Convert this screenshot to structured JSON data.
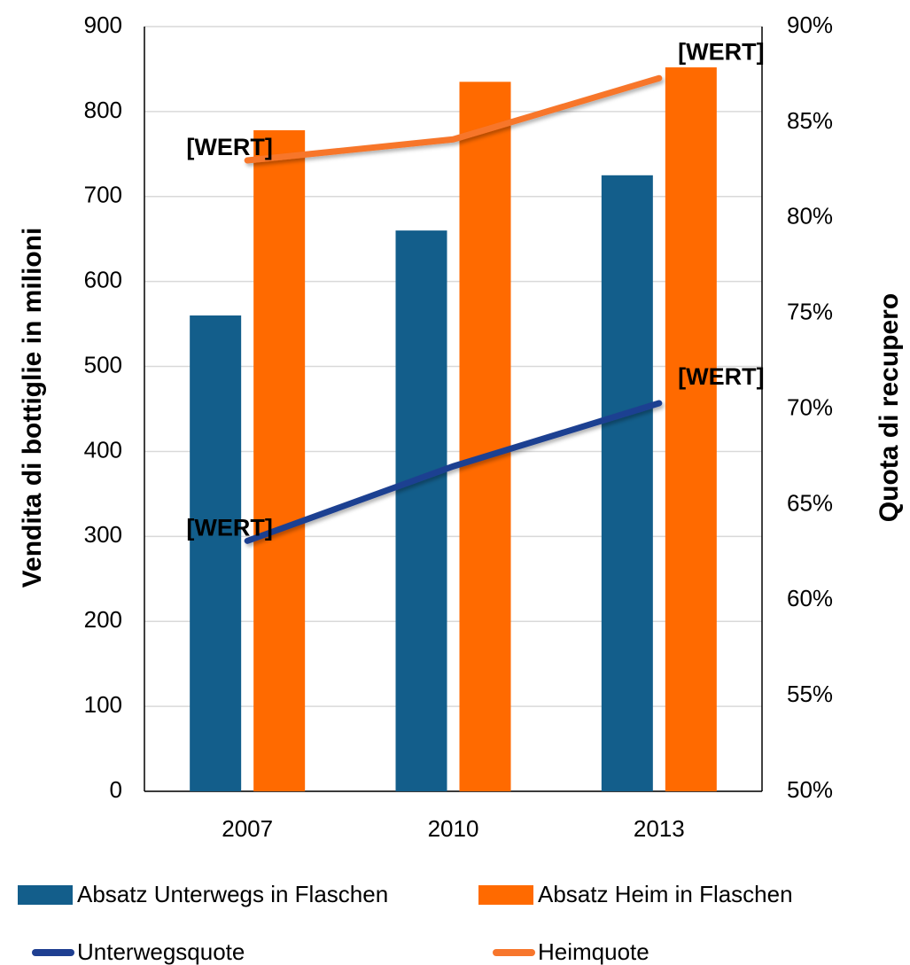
{
  "chart_data": {
    "type": "bar",
    "categories": [
      "2007",
      "2010",
      "2013"
    ],
    "y_label": "Vendita di bottiglie in milioni",
    "y2_label": "Quota di recupero",
    "ylim": [
      0,
      900
    ],
    "yticks": [
      0,
      100,
      200,
      300,
      400,
      500,
      600,
      700,
      800,
      900
    ],
    "y2lim": [
      50,
      90
    ],
    "y2ticks": [
      {
        "value": 50,
        "label": "50%"
      },
      {
        "value": 55,
        "label": "55%"
      },
      {
        "value": 60,
        "label": "60%"
      },
      {
        "value": 65,
        "label": "65%"
      },
      {
        "value": 70,
        "label": "70%"
      },
      {
        "value": 75,
        "label": "75%"
      },
      {
        "value": 80,
        "label": "80%"
      },
      {
        "value": 85,
        "label": "85%"
      },
      {
        "value": 90,
        "label": "90%"
      }
    ],
    "grid": true,
    "legend": "bottom",
    "series": [
      {
        "name": "Absatz Unterwegs in Flaschen",
        "type": "bar",
        "color": "#135e8b",
        "values": [
          560,
          660,
          725
        ]
      },
      {
        "name": "Absatz Heim in Flaschen",
        "type": "bar",
        "color": "#ff6a00",
        "values": [
          778,
          835,
          852
        ]
      },
      {
        "name": "Unterwegsquote",
        "type": "line",
        "axis": "y2",
        "color": "#1f3f91",
        "values": [
          63.1,
          67.0,
          70.3
        ],
        "value_labels": [
          "[WERT]",
          null,
          "[WERT]"
        ]
      },
      {
        "name": "Heimquote",
        "type": "line",
        "axis": "y2",
        "color": "#f7762c",
        "values": [
          83.0,
          84.1,
          87.3
        ],
        "value_labels": [
          "[WERT]",
          null,
          "[WERT]"
        ]
      }
    ]
  }
}
